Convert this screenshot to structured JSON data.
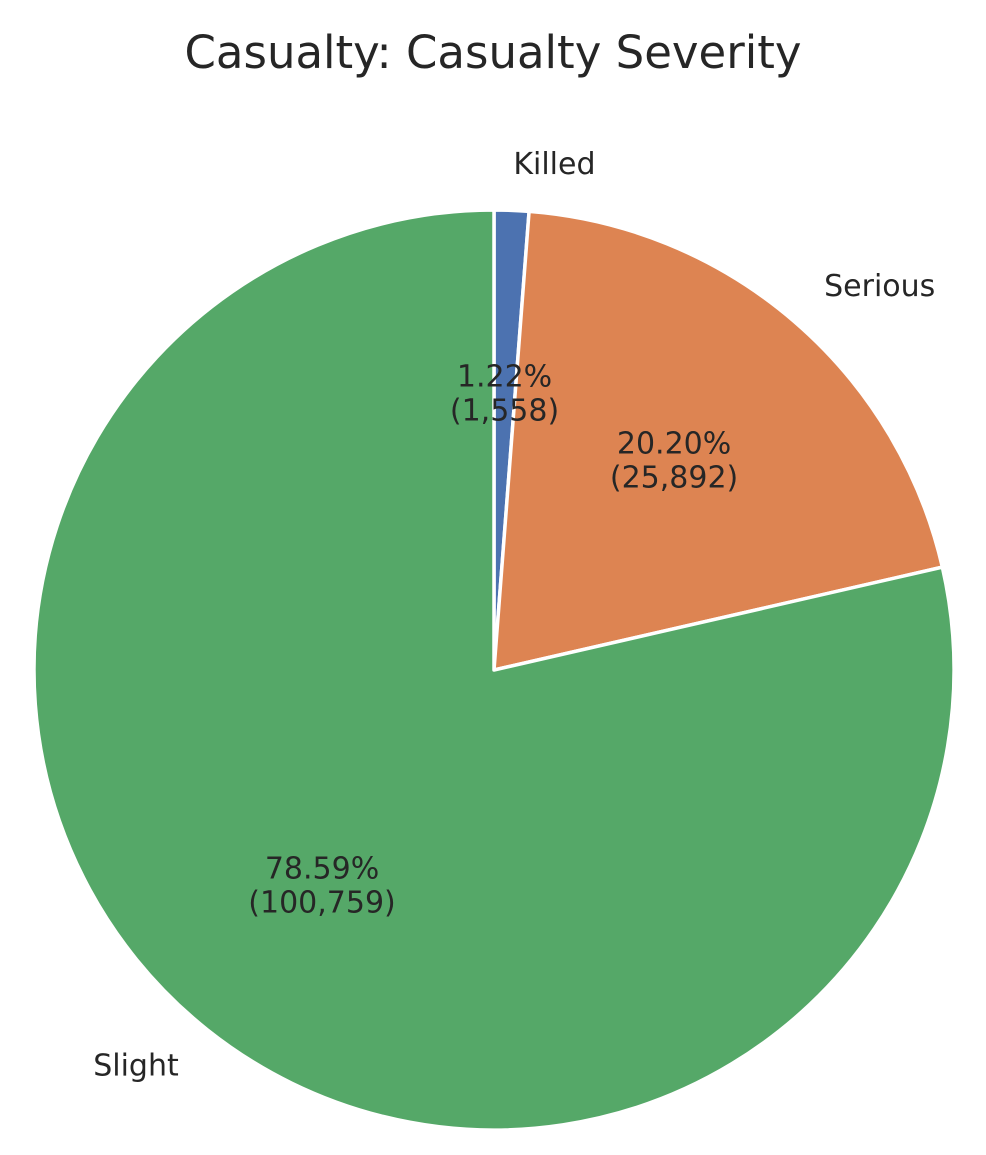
{
  "chart_data": {
    "type": "pie",
    "title": "Casualty: Casualty Severity",
    "start_angle_deg": 90,
    "direction": "clockwise",
    "slices": [
      {
        "label": "Killed",
        "value": 1558,
        "percent_text": "1.22%",
        "count_text": "(1,558)",
        "color": "#4c72b0"
      },
      {
        "label": "Serious",
        "value": 25892,
        "percent_text": "20.20%",
        "count_text": "(25,892)",
        "color": "#dd8452"
      },
      {
        "label": "Slight",
        "value": 100759,
        "percent_text": "78.59%",
        "count_text": "(100,759)",
        "color": "#55a868"
      }
    ]
  }
}
